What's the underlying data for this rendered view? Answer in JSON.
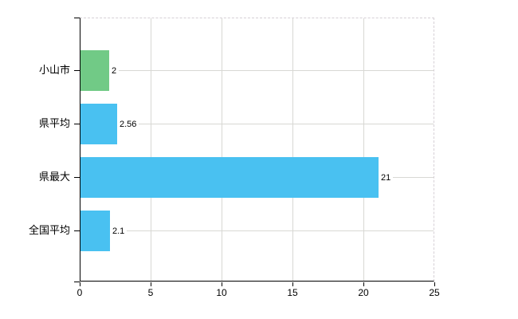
{
  "chart_data": {
    "type": "bar",
    "orientation": "horizontal",
    "title": "",
    "categories": [
      "小山市",
      "県平均",
      "県最大",
      "全国平均"
    ],
    "values": [
      2,
      2.56,
      21,
      2.1
    ],
    "value_labels": [
      "2",
      "2.56",
      "21",
      "2.1"
    ],
    "bar_colors": [
      "#71CA86",
      "#49C1F1",
      "#49C1F1",
      "#49C1F1"
    ],
    "xlabel": "",
    "ylabel": "",
    "xlim": [
      0,
      25
    ],
    "x_ticks": [
      0,
      5,
      10,
      15,
      20,
      25
    ],
    "x_tick_labels": [
      "0",
      "5",
      "10",
      "15",
      "20",
      "25"
    ],
    "grid": true,
    "legend": "none"
  },
  "colors": {
    "bar_green": "#71CA86",
    "bar_blue": "#49C1F1",
    "gridline": "#D8D8D4",
    "frame_dashed": "#D6D0D6",
    "axis": "#000000",
    "background": "#FFFFFF",
    "text": "#000000"
  }
}
